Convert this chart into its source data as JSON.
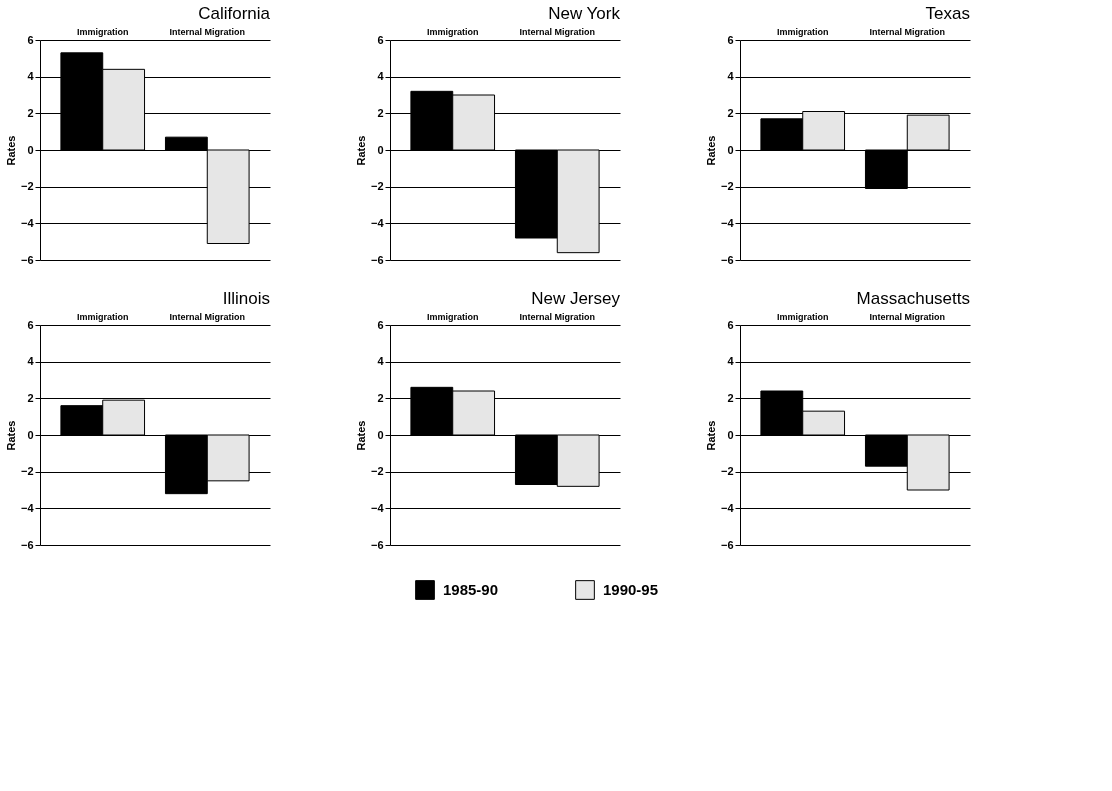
{
  "chart_data": [
    {
      "type": "bar",
      "title": "California",
      "ylabel": "Rates",
      "categories": [
        "Immigration",
        "Internal Migration"
      ],
      "ylim": [
        -6,
        6
      ],
      "yticks": [
        -6,
        -4,
        -2,
        0,
        2,
        4,
        6
      ],
      "grid": "y",
      "legend": "bottom",
      "series": [
        {
          "name": "1985-90",
          "color": "#000000",
          "values": [
            5.3,
            0.7
          ]
        },
        {
          "name": "1990-95",
          "color": "#e6e6e6",
          "values": [
            4.4,
            -5.1
          ]
        }
      ]
    },
    {
      "type": "bar",
      "title": "New York",
      "ylabel": "Rates",
      "categories": [
        "Immigration",
        "Internal Migration"
      ],
      "ylim": [
        -6,
        6
      ],
      "yticks": [
        -6,
        -4,
        -2,
        0,
        2,
        4,
        6
      ],
      "grid": "y",
      "legend": false,
      "series": [
        {
          "name": "1985-90",
          "color": "#000000",
          "values": [
            3.2,
            -4.8
          ]
        },
        {
          "name": "1990-95",
          "color": "#e6e6e6",
          "values": [
            3.0,
            -5.6
          ]
        }
      ]
    },
    {
      "type": "bar",
      "title": "Texas",
      "ylabel": "Rates",
      "categories": [
        "Immigration",
        "Internal Migration"
      ],
      "ylim": [
        -6,
        6
      ],
      "yticks": [
        -6,
        -4,
        -2,
        0,
        2,
        4,
        6
      ],
      "grid": "y",
      "legend": false,
      "series": [
        {
          "name": "1985-90",
          "color": "#000000",
          "values": [
            1.7,
            -2.1
          ]
        },
        {
          "name": "1990-95",
          "color": "#e6e6e6",
          "values": [
            2.1,
            1.9
          ]
        }
      ]
    },
    {
      "type": "bar",
      "title": "Illinois",
      "ylabel": "Rates",
      "categories": [
        "Immigration",
        "Internal Migration"
      ],
      "ylim": [
        -6,
        6
      ],
      "yticks": [
        -6,
        -4,
        -2,
        0,
        2,
        4,
        6
      ],
      "grid": "y",
      "legend": false,
      "series": [
        {
          "name": "1985-90",
          "color": "#000000",
          "values": [
            1.6,
            -3.2
          ]
        },
        {
          "name": "1990-95",
          "color": "#e6e6e6",
          "values": [
            1.9,
            -2.5
          ]
        }
      ]
    },
    {
      "type": "bar",
      "title": "New Jersey",
      "ylabel": "Rates",
      "categories": [
        "Immigration",
        "Internal Migration"
      ],
      "ylim": [
        -6,
        6
      ],
      "yticks": [
        -6,
        -4,
        -2,
        0,
        2,
        4,
        6
      ],
      "grid": "y",
      "legend": false,
      "series": [
        {
          "name": "1985-90",
          "color": "#000000",
          "values": [
            2.6,
            -2.7
          ]
        },
        {
          "name": "1990-95",
          "color": "#e6e6e6",
          "values": [
            2.4,
            -2.8
          ]
        }
      ]
    },
    {
      "type": "bar",
      "title": "Massachusetts",
      "ylabel": "Rates",
      "categories": [
        "Immigration",
        "Internal Migration"
      ],
      "ylim": [
        -6,
        6
      ],
      "yticks": [
        -6,
        -4,
        -2,
        0,
        2,
        4,
        6
      ],
      "grid": "y",
      "legend": false,
      "series": [
        {
          "name": "1985-90",
          "color": "#000000",
          "values": [
            2.4,
            -1.7
          ]
        },
        {
          "name": "1990-95",
          "color": "#e6e6e6",
          "values": [
            1.3,
            -3.0
          ]
        }
      ]
    }
  ]
}
